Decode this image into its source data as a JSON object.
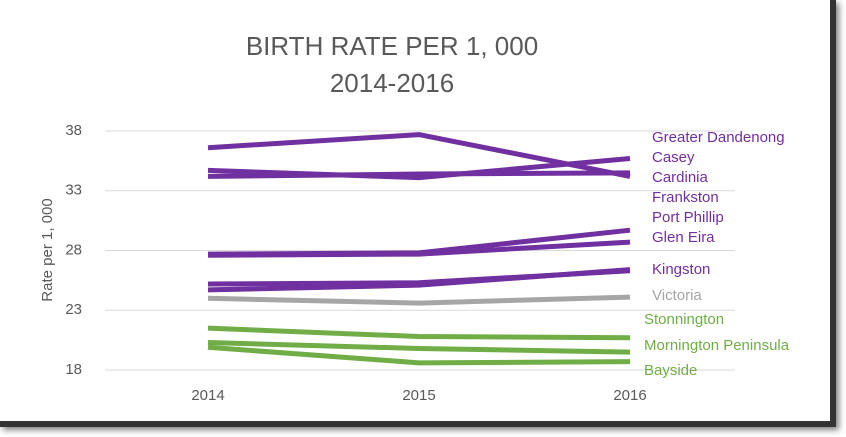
{
  "chart_data": {
    "type": "line",
    "title": "BIRTH RATE PER 1, 000",
    "subtitle": "2014-2016",
    "y_label": "Rate per 1, 000",
    "categories": [
      "2014",
      "2015",
      "2016"
    ],
    "ylim": [
      18,
      38
    ],
    "yticks": [
      18,
      23,
      28,
      33,
      38
    ],
    "grid": true,
    "series": [
      {
        "name": "Greater Dandenong",
        "color": "#7030a0",
        "values": [
          36.6,
          37.7,
          34.2
        ]
      },
      {
        "name": "Casey",
        "color": "#7030a0",
        "values": [
          34.7,
          34.1,
          35.7
        ]
      },
      {
        "name": "Cardinia",
        "color": "#7030a0",
        "values": [
          34.2,
          34.4,
          34.5
        ]
      },
      {
        "name": "Frankston",
        "color": "#7030a0",
        "values": [
          25.2,
          25.3,
          26.3
        ]
      },
      {
        "name": "Port Phillip",
        "color": "#7030a0",
        "values": [
          27.7,
          27.8,
          29.7
        ]
      },
      {
        "name": "Glen Eira",
        "color": "#7030a0",
        "values": [
          27.6,
          27.7,
          28.7
        ]
      },
      {
        "name": "Kingston",
        "color": "#7030a0",
        "values": [
          24.7,
          25.1,
          26.4
        ]
      },
      {
        "name": "Victoria",
        "color": "#a6a6a6",
        "values": [
          24.0,
          23.6,
          24.1
        ]
      },
      {
        "name": "Stonnington",
        "color": "#70ad47",
        "values": [
          21.5,
          20.8,
          20.7
        ]
      },
      {
        "name": "Mornington Peninsula",
        "color": "#70ad47",
        "values": [
          20.3,
          19.8,
          19.5
        ]
      },
      {
        "name": "Bayside",
        "color": "#70ad47",
        "values": [
          19.9,
          18.6,
          18.7
        ]
      }
    ]
  }
}
